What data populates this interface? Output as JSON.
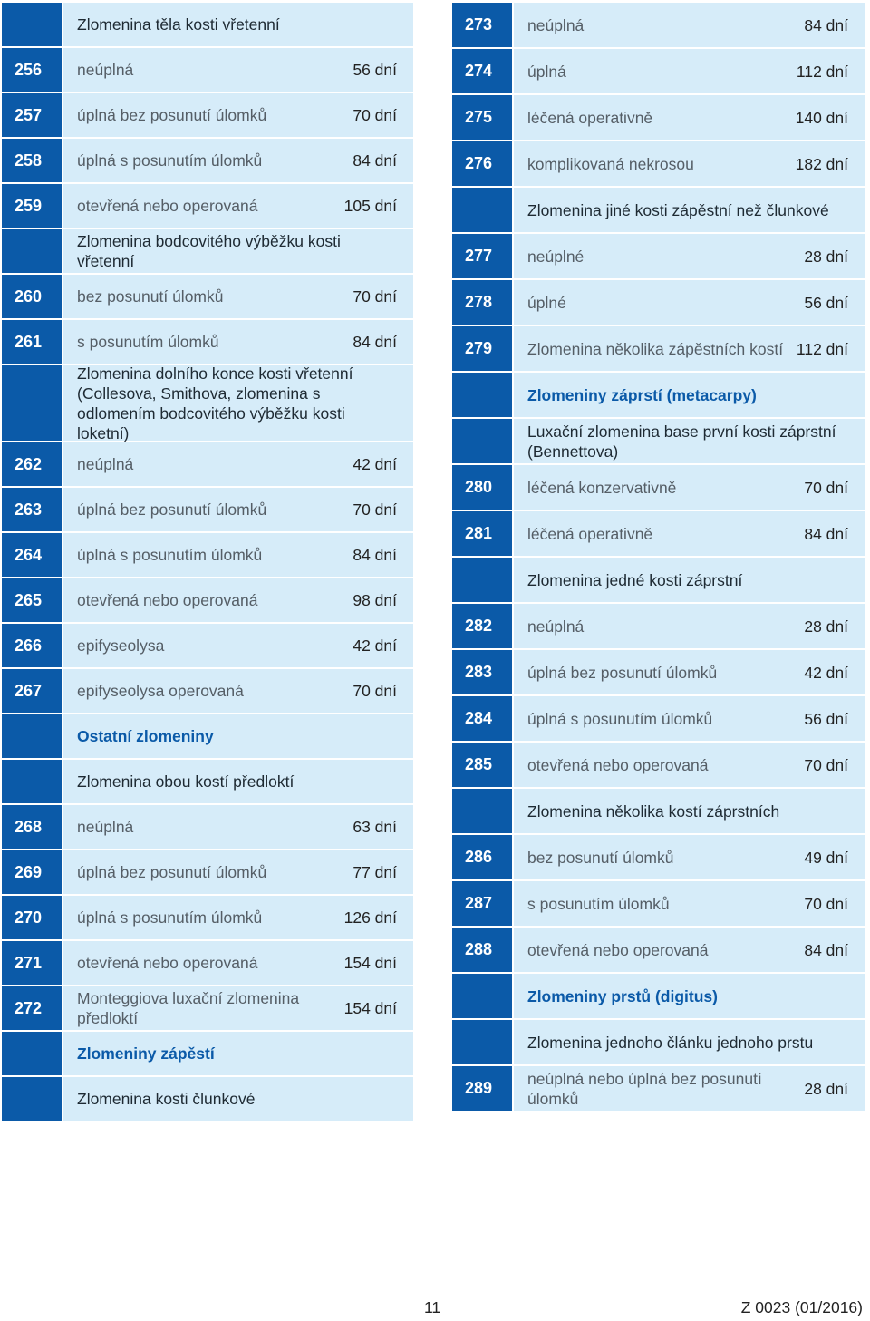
{
  "left": [
    {
      "type": "head",
      "text": "Zlomenina těla kosti vřetenní",
      "h": 48
    },
    {
      "type": "entry",
      "num": "256",
      "text": "neúplná",
      "days": "56 dní",
      "h": 48
    },
    {
      "type": "entry",
      "num": "257",
      "text": "úplná bez posunutí úlomků",
      "days": "70 dní",
      "h": 48
    },
    {
      "type": "entry",
      "num": "258",
      "text": "úplná s posunutím úlomků",
      "days": "84 dní",
      "h": 48
    },
    {
      "type": "entry",
      "num": "259",
      "text": "otevřená nebo operovaná",
      "days": "105 dní",
      "h": 48
    },
    {
      "type": "head",
      "text": "Zlomenina bodcovitého výběžku kosti vřetenní",
      "h": 48
    },
    {
      "type": "entry",
      "num": "260",
      "text": "bez posunutí úlomků",
      "days": "70 dní",
      "h": 48
    },
    {
      "type": "entry",
      "num": "261",
      "text": "s posunutím úlomků",
      "days": "84 dní",
      "h": 48
    },
    {
      "type": "head",
      "text": "Zlomenina dolního konce kosti vřetenní (Collesova, Smithova, zlomenina s odlomením bodcovitého výběžku kosti loketní)",
      "h": 83
    },
    {
      "type": "entry",
      "num": "262",
      "text": "neúplná",
      "days": "42 dní",
      "h": 48
    },
    {
      "type": "entry",
      "num": "263",
      "text": "úplná bez posunutí úlomků",
      "days": "70 dní",
      "h": 48
    },
    {
      "type": "entry",
      "num": "264",
      "text": "úplná s posunutím úlomků",
      "days": "84 dní",
      "h": 48
    },
    {
      "type": "entry",
      "num": "265",
      "text": "otevřená nebo operovaná",
      "days": "98 dní",
      "h": 48
    },
    {
      "type": "entry",
      "num": "266",
      "text": "epifyseolysa",
      "days": "42 dní",
      "h": 48
    },
    {
      "type": "entry",
      "num": "267",
      "text": "epifyseolysa operovaná",
      "days": "70 dní",
      "h": 48
    },
    {
      "type": "section",
      "text": "Ostatní zlomeniny",
      "h": 48
    },
    {
      "type": "head",
      "text": "Zlomenina obou kostí předloktí",
      "h": 48
    },
    {
      "type": "entry",
      "num": "268",
      "text": "neúplná",
      "days": "63 dní",
      "h": 48
    },
    {
      "type": "entry",
      "num": "269",
      "text": "úplná bez posunutí úlomků",
      "days": "77 dní",
      "h": 48
    },
    {
      "type": "entry",
      "num": "270",
      "text": "úplná s posunutím úlomků",
      "days": "126 dní",
      "h": 48
    },
    {
      "type": "entry",
      "num": "271",
      "text": "otevřená nebo operovaná",
      "days": "154 dní",
      "h": 48
    },
    {
      "type": "entry",
      "num": "272",
      "text": "Monteggiova luxační zlomenina předloktí",
      "days": "154 dní",
      "h": 48
    },
    {
      "type": "section",
      "text": "Zlomeniny zápěstí",
      "h": 48
    },
    {
      "type": "head",
      "text": "Zlomenina kosti člunkové",
      "h": 48
    }
  ],
  "right": [
    {
      "type": "entry",
      "num": "273",
      "text": "neúplná",
      "days": "84 dní",
      "h": 49
    },
    {
      "type": "entry",
      "num": "274",
      "text": "úplná",
      "days": "112 dní",
      "h": 49
    },
    {
      "type": "entry",
      "num": "275",
      "text": "léčená operativně",
      "days": "140 dní",
      "h": 49
    },
    {
      "type": "entry",
      "num": "276",
      "text": "komplikovaná nekrosou",
      "days": "182 dní",
      "h": 49
    },
    {
      "type": "head",
      "text": "Zlomenina jiné kosti zápěstní než člunkové",
      "h": 49
    },
    {
      "type": "entry",
      "num": "277",
      "text": "neúplné",
      "days": "28 dní",
      "h": 49
    },
    {
      "type": "entry",
      "num": "278",
      "text": "úplné",
      "days": "56 dní",
      "h": 49
    },
    {
      "type": "entry",
      "num": "279",
      "text": "Zlomenina několika zápěstních kostí",
      "days": "112 dní",
      "h": 49
    },
    {
      "type": "section",
      "text": "Zlomeniny záprstí (metacarpy)",
      "h": 49
    },
    {
      "type": "head",
      "text": "Luxační zlomenina base první kosti záprstní (Bennettova)",
      "h": 49
    },
    {
      "type": "entry",
      "num": "280",
      "text": "léčená konzervativně",
      "days": "70 dní",
      "h": 49
    },
    {
      "type": "entry",
      "num": "281",
      "text": "léčená operativně",
      "days": "84 dní",
      "h": 49
    },
    {
      "type": "head",
      "text": "Zlomenina jedné kosti záprstní",
      "h": 49
    },
    {
      "type": "entry",
      "num": "282",
      "text": "neúplná",
      "days": "28 dní",
      "h": 49
    },
    {
      "type": "entry",
      "num": "283",
      "text": "úplná bez posunutí úlomků",
      "days": "42 dní",
      "h": 49
    },
    {
      "type": "entry",
      "num": "284",
      "text": "úplná s posunutím úlomků",
      "days": "56 dní",
      "h": 49
    },
    {
      "type": "entry",
      "num": "285",
      "text": "otevřená nebo operovaná",
      "days": "70 dní",
      "h": 49
    },
    {
      "type": "head",
      "text": "Zlomenina několika kostí záprstních",
      "h": 49
    },
    {
      "type": "entry",
      "num": "286",
      "text": "bez posunutí úlomků",
      "days": "49 dní",
      "h": 49
    },
    {
      "type": "entry",
      "num": "287",
      "text": "s posunutím úlomků",
      "days": "70 dní",
      "h": 49
    },
    {
      "type": "entry",
      "num": "288",
      "text": "otevřená nebo operovaná",
      "days": "84 dní",
      "h": 49
    },
    {
      "type": "section",
      "text": "Zlomeniny prstů (digitus)",
      "h": 49
    },
    {
      "type": "head",
      "text": "Zlomenina jednoho článku jednoho prstu",
      "h": 49
    },
    {
      "type": "entry",
      "num": "289",
      "text": "neúplná nebo úplná bez posunutí úlomků",
      "days": "28 dní",
      "h": 49
    }
  ],
  "footer": {
    "page": "11",
    "code": "Z 0023 (01/2016)"
  },
  "colors": {
    "number_cell": "#0b5aa8",
    "text_cell": "#d6ecf9",
    "section_text": "#0b5aa8"
  }
}
